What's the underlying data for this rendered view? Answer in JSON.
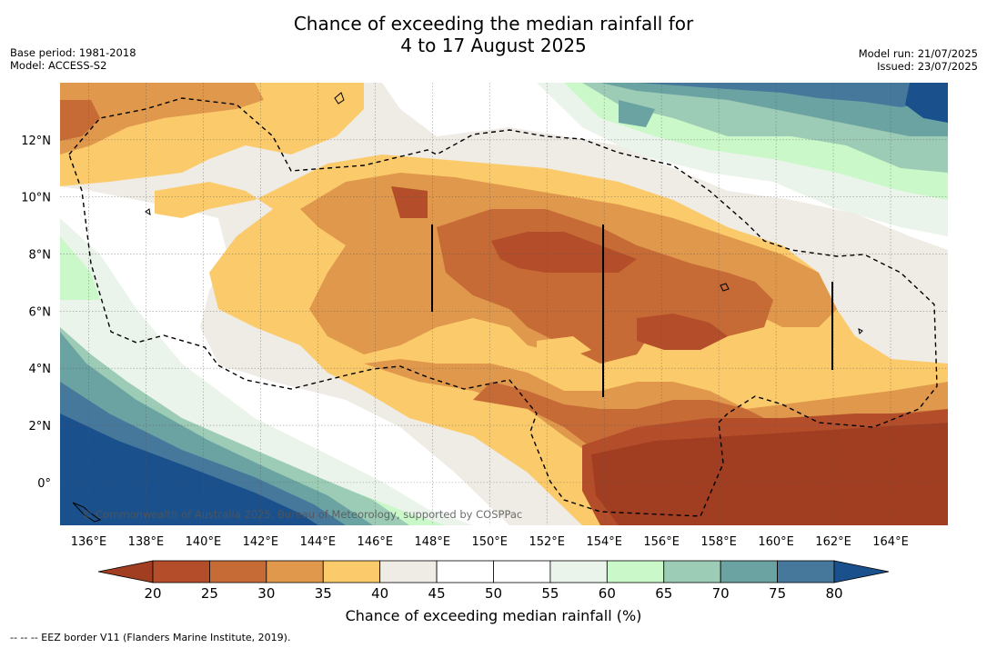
{
  "header": {
    "title_line1": "Chance of exceeding the median rainfall for",
    "title_line2": "4 to 17 August 2025",
    "base_period": "Base period: 1981-2018",
    "model": "Model: ACCESS-S2",
    "model_run": "Model run: 21/07/2025",
    "issued": "Issued: 23/07/2025"
  },
  "map": {
    "lon_ticks": [
      "136°E",
      "138°E",
      "140°E",
      "142°E",
      "144°E",
      "146°E",
      "148°E",
      "150°E",
      "152°E",
      "154°E",
      "156°E",
      "158°E",
      "160°E",
      "162°E",
      "164°E"
    ],
    "lat_ticks": [
      "12°N",
      "10°N",
      "8°N",
      "6°N",
      "4°N",
      "2°N",
      "0°"
    ],
    "lon_range": [
      135,
      166
    ],
    "lat_range": [
      -1.5,
      14
    ],
    "copyright": "© Commonwealth of Australia 2025, Bureau of Meteorology, supported by COSPPac",
    "colors": {
      "c15": "#a13e22",
      "c20": "#b44e2a",
      "c25": "#c66a36",
      "c30": "#e0984c",
      "c35": "#fbcb6b",
      "c40": "#efebe5",
      "c45": "#ffffff",
      "c50": "#ffffff",
      "c55": "#eaf4ea",
      "c60": "#caf8c8",
      "c65": "#9dccb6",
      "c70": "#6ba2a2",
      "c75": "#46789c",
      "c80": "#1a508c"
    }
  },
  "colorbar": {
    "ticks": [
      "20",
      "25",
      "30",
      "35",
      "40",
      "45",
      "50",
      "55",
      "60",
      "65",
      "70",
      "75",
      "80"
    ],
    "colors": [
      "#b44e2a",
      "#c66a36",
      "#e0984c",
      "#fbcb6b",
      "#efebe5",
      "#ffffff",
      "#ffffff",
      "#eaf4ea",
      "#caf8c8",
      "#9dccb6",
      "#6ba2a2",
      "#46789c"
    ],
    "low_color": "#a13e22",
    "high_color": "#1a508c",
    "label": "Chance of exceeding median rainfall (%)"
  },
  "footnote": "--  --  -- EEZ border V11 (Flanders Marine Institute, 2019)."
}
